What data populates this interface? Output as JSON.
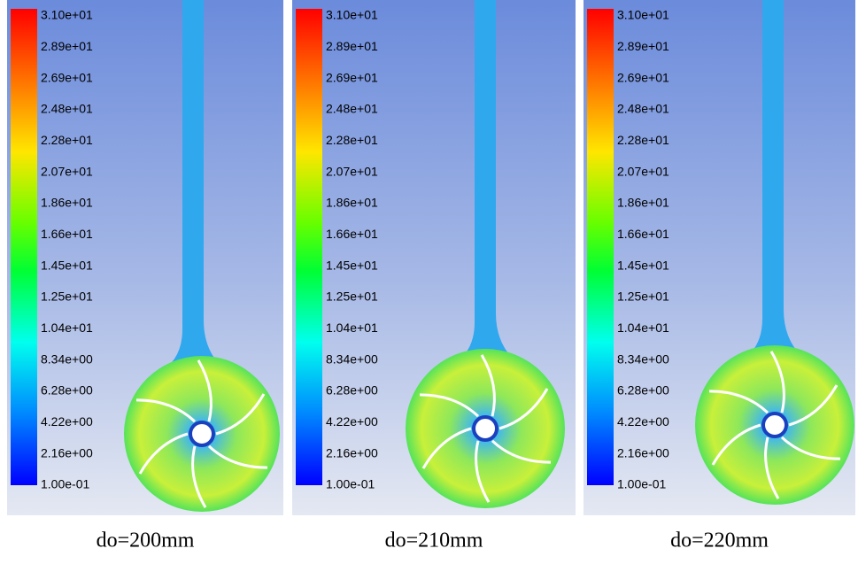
{
  "panels": [
    {
      "caption": "do=200mm",
      "legend_labels": [
        "3.10e+01",
        "2.89e+01",
        "2.69e+01",
        "2.48e+01",
        "2.28e+01",
        "2.07e+01",
        "1.86e+01",
        "1.66e+01",
        "1.45e+01",
        "1.25e+01",
        "1.04e+01",
        "8.34e+00",
        "6.28e+00",
        "4.22e+00",
        "2.16e+00",
        "1.00e-01"
      ]
    },
    {
      "caption": "do=210mm",
      "legend_labels": [
        "3.10e+01",
        "2.89e+01",
        "2.69e+01",
        "2.48e+01",
        "2.28e+01",
        "2.07e+01",
        "1.86e+01",
        "1.66e+01",
        "1.45e+01",
        "1.25e+01",
        "1.04e+01",
        "8.34e+00",
        "6.28e+00",
        "4.22e+00",
        "2.16e+00",
        "1.00e-01"
      ]
    },
    {
      "caption": "do=220mm",
      "legend_labels": [
        "3.10e+01",
        "2.89e+01",
        "2.69e+01",
        "2.48e+01",
        "2.28e+01",
        "2.07e+01",
        "1.86e+01",
        "1.66e+01",
        "1.45e+01",
        "1.25e+01",
        "1.04e+01",
        "8.34e+00",
        "6.28e+00",
        "4.22e+00",
        "2.16e+00",
        "1.00e-01"
      ]
    }
  ]
}
